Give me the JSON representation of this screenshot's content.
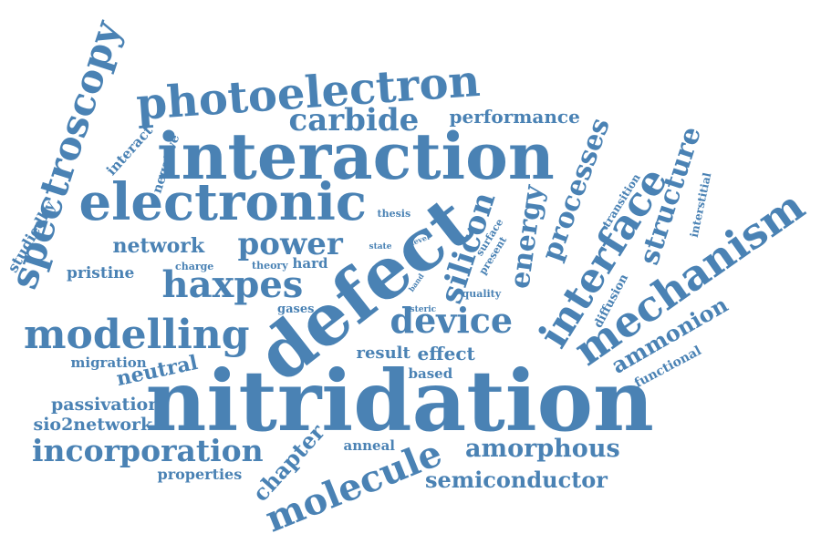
{
  "color": "#4a82b4",
  "words": [
    "nitridation",
    "defect",
    "interaction",
    "electronic",
    "photoelectron",
    "spectroscopy",
    "modelling",
    "mechanism",
    "molecule",
    "interface",
    "haxpes",
    "device",
    "incorporation",
    "power",
    "silicon",
    "carbide",
    "processes",
    "energy",
    "amorphous",
    "semiconductor",
    "structure",
    "network",
    "performance",
    "chapter",
    "ammonion",
    "neutral",
    "passivation",
    "sio2network",
    "pristine",
    "migration",
    "result",
    "effect",
    "studiedby",
    "interact",
    "negative",
    "properties",
    "anneal",
    "based",
    "functional",
    "diffusion",
    "transition",
    "interstitial",
    "charge",
    "theory",
    "hard",
    "gases",
    "thesis",
    "state",
    "level",
    "surface",
    "present",
    "band",
    "quality",
    "steric"
  ]
}
